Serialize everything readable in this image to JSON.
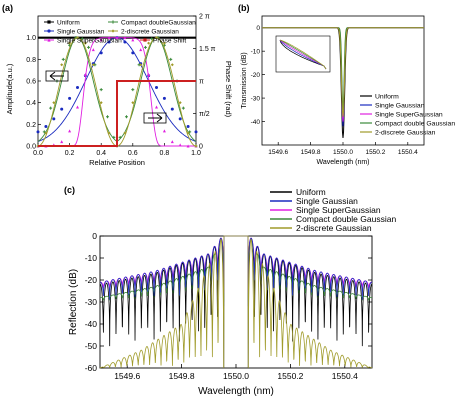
{
  "chart_data": [
    {
      "panel": "(a)",
      "type": "line",
      "xlabel": "Relative Position",
      "ylabel": "Amplitude(a.u.)",
      "y2label": "Phase Shift (rad)",
      "xlim": [
        0.0,
        1.0
      ],
      "ylim": [
        0.0,
        1.2
      ],
      "y2lim": [
        0,
        6.2832
      ],
      "x_ticks": [
        "0.0",
        "0.2",
        "0.4",
        "0.6",
        "0.8",
        "1.0"
      ],
      "y_ticks": [
        "0.0",
        "0.2",
        "0.4",
        "0.6",
        "0.8",
        "1.0"
      ],
      "y2_ticks": [
        "0",
        "π/2",
        "π",
        "1.5 π",
        "2 π"
      ],
      "series": [
        {
          "name": "Uniform",
          "color": "#000000",
          "marker": "square",
          "x": [
            0,
            0.1,
            0.2,
            0.3,
            0.4,
            0.5,
            0.6,
            0.7,
            0.8,
            0.9,
            1.0
          ],
          "y": [
            1.0,
            1.0,
            1.0,
            1.0,
            1.0,
            1.0,
            1.0,
            1.0,
            1.0,
            1.0,
            1.0
          ]
        },
        {
          "name": "Single Gaussian",
          "color": "#1a2bbf",
          "marker": "circle",
          "x": [
            0,
            0.05,
            0.1,
            0.15,
            0.2,
            0.25,
            0.3,
            0.35,
            0.4,
            0.45,
            0.5,
            0.55,
            0.6,
            0.65,
            0.7,
            0.75,
            0.8,
            0.85,
            0.9,
            0.95,
            1.0
          ],
          "y": [
            0.13,
            0.18,
            0.25,
            0.34,
            0.44,
            0.54,
            0.65,
            0.76,
            0.86,
            0.96,
            1.0,
            0.96,
            0.86,
            0.76,
            0.65,
            0.54,
            0.44,
            0.34,
            0.25,
            0.18,
            0.13
          ]
        },
        {
          "name": "Single SuperGaussian",
          "color": "#e020e0",
          "marker": "triangle",
          "x": [
            0,
            0.05,
            0.1,
            0.15,
            0.2,
            0.25,
            0.3,
            0.35,
            0.4,
            0.45,
            0.5,
            0.55,
            0.6,
            0.65,
            0.7,
            0.75,
            0.8,
            0.85,
            0.9,
            0.95,
            1.0
          ],
          "y": [
            0.0,
            0.0,
            0.01,
            0.04,
            0.14,
            0.36,
            0.66,
            0.89,
            0.98,
            1.0,
            1.0,
            1.0,
            0.98,
            0.89,
            0.66,
            0.36,
            0.14,
            0.04,
            0.01,
            0.0,
            0.0
          ]
        },
        {
          "name": "Compact doubleGaussian",
          "color": "#3a8a3a",
          "marker": "star",
          "x": [
            0,
            0.04,
            0.08,
            0.12,
            0.16,
            0.2,
            0.24,
            0.28,
            0.32,
            0.36,
            0.4,
            0.44,
            0.48,
            0.5,
            0.52,
            0.56,
            0.6,
            0.64,
            0.68,
            0.72,
            0.76,
            0.8,
            0.84,
            0.88,
            0.92,
            0.96,
            1.0
          ],
          "y": [
            0.0,
            0.13,
            0.35,
            0.6,
            0.8,
            0.93,
            1.0,
            0.99,
            0.91,
            0.75,
            0.52,
            0.27,
            0.08,
            0.0,
            0.08,
            0.27,
            0.52,
            0.75,
            0.91,
            0.99,
            1.0,
            0.93,
            0.8,
            0.6,
            0.35,
            0.13,
            0.0
          ]
        },
        {
          "name": "2-discrete Gaussian",
          "color": "#a09b2a",
          "marker": "diamond",
          "x": [
            0,
            0.05,
            0.1,
            0.15,
            0.2,
            0.25,
            0.3,
            0.35,
            0.4,
            0.45,
            0.5,
            0.55,
            0.6,
            0.65,
            0.7,
            0.75,
            0.8,
            0.85,
            0.9,
            0.95,
            1.0
          ],
          "y": [
            0.0,
            0.12,
            0.4,
            0.75,
            0.95,
            1.0,
            0.95,
            0.75,
            0.4,
            0.12,
            0.0,
            0.12,
            0.4,
            0.75,
            0.95,
            1.0,
            0.95,
            0.75,
            0.4,
            0.12,
            0.0
          ]
        },
        {
          "name": "Phase Shift",
          "color": "#cc2020",
          "marker": "square",
          "x": [
            0.0,
            0.5,
            0.5,
            1.0
          ],
          "y": [
            0,
            0,
            3.1416,
            3.1416
          ]
        }
      ]
    },
    {
      "panel": "(b)",
      "type": "line",
      "xlabel": "Wavelength (nm)",
      "ylabel": "Transmission (dB)",
      "xlim": [
        1549.5,
        1550.5
      ],
      "ylim": [
        -50,
        5
      ],
      "x_ticks": [
        "1549.6",
        "1549.8",
        "1550.0",
        "1550.2",
        "1550.4"
      ],
      "y_ticks": [
        "0",
        "-10",
        "-20",
        "-30",
        "-40"
      ],
      "series": [
        {
          "name": "Uniform",
          "color": "#000000",
          "x": [
            1549.5,
            1549.9,
            1549.96,
            1549.985,
            1550.0,
            1550.015,
            1550.04,
            1550.1,
            1550.5
          ],
          "y": [
            0,
            -0.3,
            -3,
            -25,
            -47,
            -25,
            -3,
            -0.3,
            0
          ]
        },
        {
          "name": "Single Gaussian",
          "color": "#1a2bbf",
          "x": [
            1549.5,
            1549.9,
            1549.97,
            1549.99,
            1550.0,
            1550.01,
            1550.03,
            1550.1,
            1550.5
          ],
          "y": [
            0,
            -0.2,
            -2,
            -20,
            -42,
            -20,
            -2,
            -0.2,
            0
          ]
        },
        {
          "name": "Single SuperGaussian",
          "color": "#e020e0",
          "x": [
            1549.5,
            1549.9,
            1549.97,
            1549.99,
            1550.0,
            1550.01,
            1550.03,
            1550.1,
            1550.5
          ],
          "y": [
            0,
            -0.2,
            -2,
            -19,
            -40,
            -19,
            -2,
            -0.2,
            0
          ]
        },
        {
          "name": "Compact double Gaussian",
          "color": "#3a8a3a",
          "x": [
            1549.5,
            1549.9,
            1549.97,
            1549.99,
            1550.0,
            1550.01,
            1550.03,
            1550.1,
            1550.5
          ],
          "y": [
            0,
            -0.2,
            -2,
            -16,
            -35,
            -16,
            -2,
            -0.2,
            0
          ]
        },
        {
          "name": "2-discrete Gaussian",
          "color": "#a09b2a",
          "x": [
            1549.5,
            1549.9,
            1549.96,
            1549.985,
            1550.0,
            1550.015,
            1550.04,
            1550.1,
            1550.5
          ],
          "y": [
            0,
            -0.3,
            -3,
            -22,
            -38,
            -22,
            -3,
            -0.3,
            0
          ]
        }
      ]
    },
    {
      "panel": "(c)",
      "type": "line",
      "xlabel": "Wavelength (nm)",
      "ylabel": "Reflection (dB)",
      "xlim": [
        1549.5,
        1550.5
      ],
      "ylim": [
        -60,
        0
      ],
      "x_ticks": [
        "1549.6",
        "1549.8",
        "1550.0",
        "1550.2",
        "1550.4"
      ],
      "y_ticks": [
        "0",
        "-10",
        "-20",
        "-30",
        "-40",
        "-50",
        "-60"
      ],
      "series": [
        {
          "name": "Uniform",
          "color": "#000000",
          "side_lobe_envelope_dB": {
            "x": [
              1549.5,
              1549.7,
              1549.9,
              1549.95
            ],
            "y": [
              -22,
              -17,
              -8,
              0
            ]
          },
          "null_depth_dB": -60
        },
        {
          "name": "Single Gaussian",
          "color": "#1a2bbf",
          "side_lobe_envelope_dB": {
            "x": [
              1549.5,
              1549.7,
              1549.9,
              1549.95
            ],
            "y": [
              -21,
              -16,
              -8,
              0
            ]
          },
          "null_depth_dB": -32
        },
        {
          "name": "Single SuperGaussian",
          "color": "#e020e0",
          "side_lobe_envelope_dB": {
            "x": [
              1549.5,
              1549.7,
              1549.9,
              1549.95
            ],
            "y": [
              -21,
              -16,
              -8,
              0
            ]
          },
          "null_depth_dB": -26
        },
        {
          "name": "Compact double Gaussian",
          "color": "#3a8a3a",
          "side_lobe_envelope_dB": {
            "x": [
              1549.5,
              1549.7,
              1549.9,
              1549.95
            ],
            "y": [
              -28,
              -23,
              -14,
              0
            ]
          },
          "null_depth_dB": -30
        },
        {
          "name": "2-discrete Gaussian",
          "color": "#a09b2a",
          "side_lobe_envelope_dB": {
            "x": [
              1549.5,
              1549.65,
              1549.8,
              1549.95
            ],
            "y": [
              -60,
              -52,
              -40,
              0
            ]
          },
          "null_depth_dB": -60
        }
      ]
    }
  ],
  "labels": {
    "panel_a": "(a)",
    "panel_b": "(b)",
    "panel_c": "(c)"
  }
}
